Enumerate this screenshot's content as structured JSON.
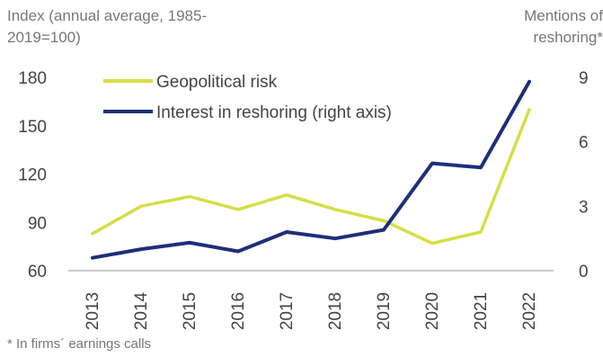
{
  "chart_data": {
    "type": "line",
    "ylabel_left": "Index (annual average, 1985-2019=100)",
    "ylabel_right": "Mentions of reshoring*",
    "footnote": "* In firms´ earnings calls",
    "x": [
      "2013",
      "2014",
      "2015",
      "2016",
      "2017",
      "2018",
      "2019",
      "2020",
      "2021",
      "2022"
    ],
    "ylim_left": [
      60,
      180
    ],
    "yticks_left": [
      60,
      90,
      120,
      150,
      180
    ],
    "ylim_right": [
      0,
      9
    ],
    "yticks_right": [
      0,
      3,
      6,
      9
    ],
    "legend_position": "top-left",
    "grid": false,
    "series": [
      {
        "name": "Geopolitical risk",
        "axis": "left",
        "color": "#d4df45",
        "values": [
          83,
          100,
          106,
          98,
          107,
          98,
          91,
          77,
          84,
          160
        ]
      },
      {
        "name": "Interest in reshoring (right axis)",
        "axis": "right",
        "color": "#1f2e7a",
        "values": [
          0.6,
          1.0,
          1.3,
          0.9,
          1.8,
          1.5,
          1.9,
          5.0,
          4.8,
          8.8
        ]
      }
    ]
  }
}
